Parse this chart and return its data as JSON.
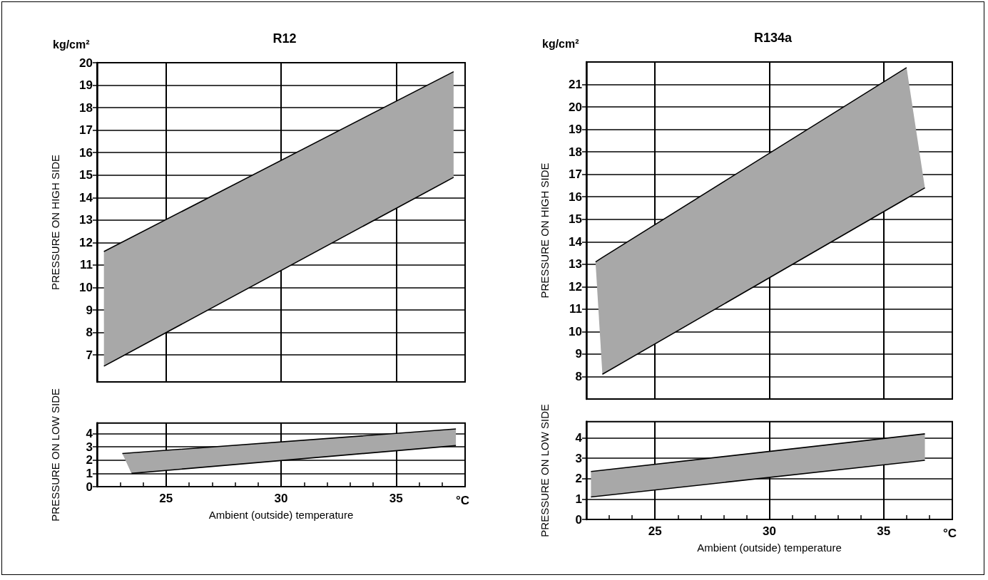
{
  "chart_data": [
    {
      "type": "line",
      "title": "R12",
      "ylabel": "PRESSURE ON HIGH SIDE",
      "annotations": [
        "kg/cm²"
      ],
      "color": "#a8a8a8",
      "xlim": [
        22,
        38
      ],
      "xticks": [
        25,
        30,
        35
      ],
      "ylim": [
        5.8,
        20
      ],
      "yticks": [
        7,
        8,
        9,
        10,
        11,
        12,
        13,
        14,
        15,
        16,
        17,
        18,
        19,
        20
      ],
      "grid": true,
      "tick_labels": "y",
      "series": [
        {
          "color": "#000000",
          "x": [
            22.3,
            37.5
          ],
          "values": [
            11.6,
            19.6
          ],
          "lower": [
            6.5,
            14.9
          ],
          "upper": [
            11.6,
            19.6
          ]
        },
        {
          "color": "#000000",
          "x": [
            22.3,
            37.5
          ],
          "values": [
            6.5,
            14.9
          ]
        }
      ]
    },
    {
      "type": "line",
      "ylabel": "PRESSURE ON LOW SIDE",
      "xlabel": "Ambient (outside) temperature",
      "annotations": [
        "°C"
      ],
      "color": "#a8a8a8",
      "xlim": [
        22,
        38
      ],
      "xticks": [
        {
          "value": 23,
          "label": null
        },
        {
          "value": 24,
          "label": null
        },
        25,
        {
          "value": 26,
          "label": null
        },
        {
          "value": 27,
          "label": null
        },
        {
          "value": 28,
          "label": null
        },
        {
          "value": 29,
          "label": null
        },
        30,
        {
          "value": 31,
          "label": null
        },
        {
          "value": 32,
          "label": null
        },
        {
          "value": 33,
          "label": null
        },
        {
          "value": 34,
          "label": null
        },
        35,
        {
          "value": 36,
          "label": null
        },
        {
          "value": 37,
          "label": null
        }
      ],
      "ylim": [
        0,
        4.8
      ],
      "yticks": [
        0,
        1,
        2,
        3,
        4
      ],
      "grid": true,
      "series": [
        {
          "color": "#000000",
          "x": [
            23.1,
            23.5,
            37.6
          ],
          "values": [
            2.5,
            2.55,
            4.35
          ],
          "lower": [
            2.5,
            1.0,
            3.1
          ],
          "upper": [
            2.5,
            2.55,
            4.35
          ]
        },
        {
          "color": "#000000",
          "x": [
            23.5,
            37.6
          ],
          "values": [
            1.0,
            3.1
          ]
        }
      ]
    },
    {
      "type": "line",
      "title": "R134a",
      "ylabel": "PRESSURE ON HIGH SIDE",
      "annotations": [
        "kg/cm²"
      ],
      "color": "#a8a8a8",
      "xlim": [
        22,
        38
      ],
      "xticks": [
        25,
        30,
        35
      ],
      "ylim": [
        7,
        22
      ],
      "yticks": [
        8,
        9,
        10,
        11,
        12,
        13,
        14,
        15,
        16,
        17,
        18,
        19,
        20,
        21
      ],
      "grid": true,
      "tick_labels": "y",
      "series": [
        {
          "color": "#000000",
          "x": [
            22.4,
            22.7,
            36.0,
            36.8
          ],
          "values": [
            13.1,
            13.3,
            21.75,
            null
          ],
          "lower": [
            13.1,
            8.1,
            15.9,
            16.4
          ],
          "upper": [
            13.1,
            13.3,
            21.75,
            16.4
          ]
        },
        {
          "color": "#000000",
          "x": [
            22.7,
            36.8
          ],
          "values": [
            8.1,
            16.4
          ]
        }
      ]
    },
    {
      "type": "line",
      "ylabel": "PRESSURE ON LOW SIDE",
      "xlabel": "Ambient (outside) temperature",
      "annotations": [
        "°C"
      ],
      "color": "#a8a8a8",
      "xlim": [
        22,
        38
      ],
      "xticks": [
        {
          "value": 23,
          "label": null
        },
        {
          "value": 24,
          "label": null
        },
        25,
        {
          "value": 26,
          "label": null
        },
        {
          "value": 27,
          "label": null
        },
        {
          "value": 28,
          "label": null
        },
        {
          "value": 29,
          "label": null
        },
        30,
        {
          "value": 31,
          "label": null
        },
        {
          "value": 32,
          "label": null
        },
        {
          "value": 33,
          "label": null
        },
        {
          "value": 34,
          "label": null
        },
        35,
        {
          "value": 36,
          "label": null
        },
        {
          "value": 37,
          "label": null
        }
      ],
      "ylim": [
        0,
        4.8
      ],
      "yticks": [
        0,
        1,
        2,
        3,
        4
      ],
      "grid": true,
      "series": [
        {
          "color": "#000000",
          "x": [
            22.2,
            36.8
          ],
          "values": [
            2.35,
            4.2
          ],
          "lower": [
            1.1,
            2.9
          ],
          "upper": [
            2.35,
            4.2
          ]
        },
        {
          "color": "#000000",
          "x": [
            22.2,
            36.8
          ],
          "values": [
            1.1,
            2.9
          ]
        }
      ]
    }
  ]
}
